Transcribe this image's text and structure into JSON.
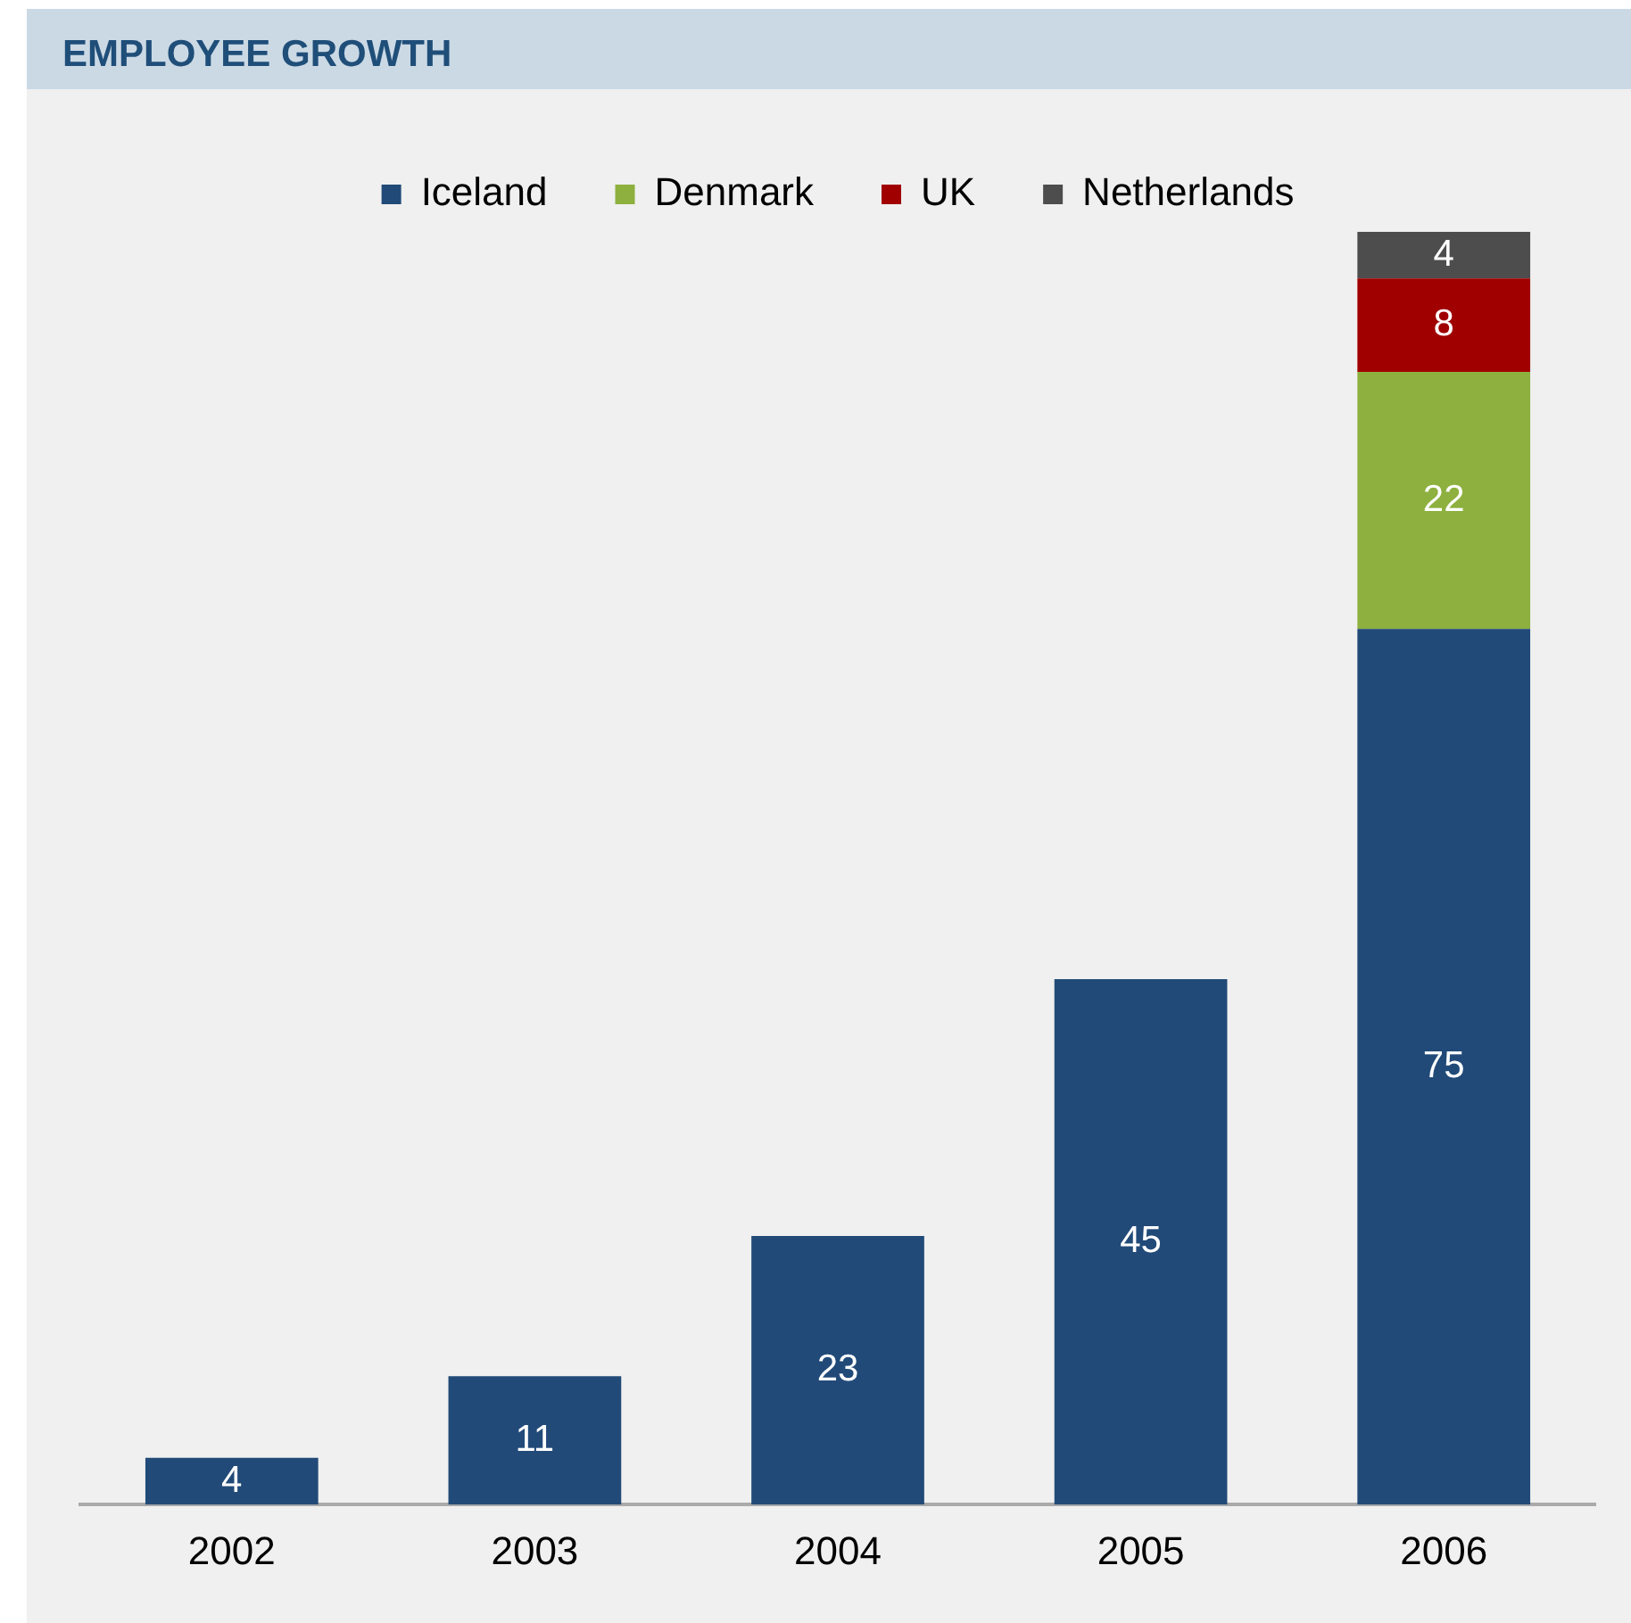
{
  "chart_data": {
    "type": "bar",
    "title": "EMPLOYEE GROWTH",
    "stacked": true,
    "legend": "top",
    "grid": false,
    "data_labels": true,
    "categories": [
      "2002",
      "2003",
      "2004",
      "2005",
      "2006"
    ],
    "series": [
      {
        "name": "Iceland",
        "color": "#214a78",
        "values": [
          4,
          11,
          23,
          45,
          75
        ]
      },
      {
        "name": "Denmark",
        "color": "#8db03f",
        "values": [
          null,
          null,
          null,
          null,
          22
        ]
      },
      {
        "name": "UK",
        "color": "#a00000",
        "values": [
          null,
          null,
          null,
          null,
          8
        ]
      },
      {
        "name": "Netherlands",
        "color": "#4d4d4d",
        "values": [
          null,
          null,
          null,
          null,
          4
        ]
      }
    ]
  }
}
